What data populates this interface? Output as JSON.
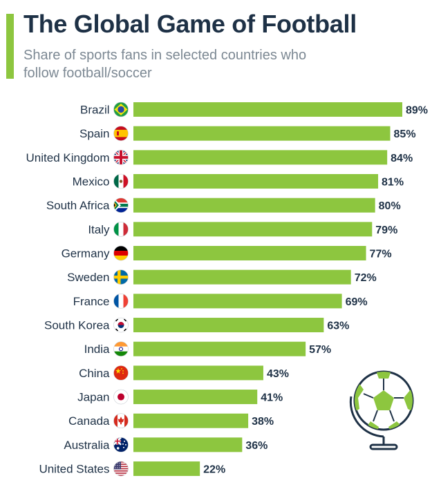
{
  "header": {
    "title": "The Global Game of Football",
    "subtitle": "Share of sports fans in selected countries who follow football/soccer"
  },
  "colors": {
    "accent": "#8dc63f",
    "bar": "#8dc63f",
    "text": "#1e3146",
    "subtitle": "#7c8893"
  },
  "chart_data": {
    "type": "bar",
    "orientation": "horizontal",
    "title": "The Global Game of Football",
    "subtitle": "Share of sports fans in selected countries who follow football/soccer",
    "categories": [
      "Brazil",
      "Spain",
      "United Kingdom",
      "Mexico",
      "South Africa",
      "Italy",
      "Germany",
      "Sweden",
      "France",
      "South Korea",
      "India",
      "China",
      "Japan",
      "Canada",
      "Australia",
      "United States"
    ],
    "flags": [
      "flag-brazil-icon",
      "flag-spain-icon",
      "flag-uk-icon",
      "flag-mexico-icon",
      "flag-south-africa-icon",
      "flag-italy-icon",
      "flag-germany-icon",
      "flag-sweden-icon",
      "flag-france-icon",
      "flag-south-korea-icon",
      "flag-india-icon",
      "flag-china-icon",
      "flag-japan-icon",
      "flag-canada-icon",
      "flag-australia-icon",
      "flag-usa-icon"
    ],
    "values": [
      89,
      85,
      84,
      81,
      80,
      79,
      77,
      72,
      69,
      63,
      57,
      43,
      41,
      38,
      36,
      22
    ],
    "value_labels": [
      "89%",
      "85%",
      "84%",
      "81%",
      "80%",
      "79%",
      "77%",
      "72%",
      "69%",
      "63%",
      "57%",
      "43%",
      "41%",
      "38%",
      "36%",
      "22%"
    ],
    "unit": "%",
    "xlim": [
      0,
      89
    ],
    "grid": false,
    "legend": "none"
  },
  "decoration": {
    "icon": "football-globe-icon"
  }
}
